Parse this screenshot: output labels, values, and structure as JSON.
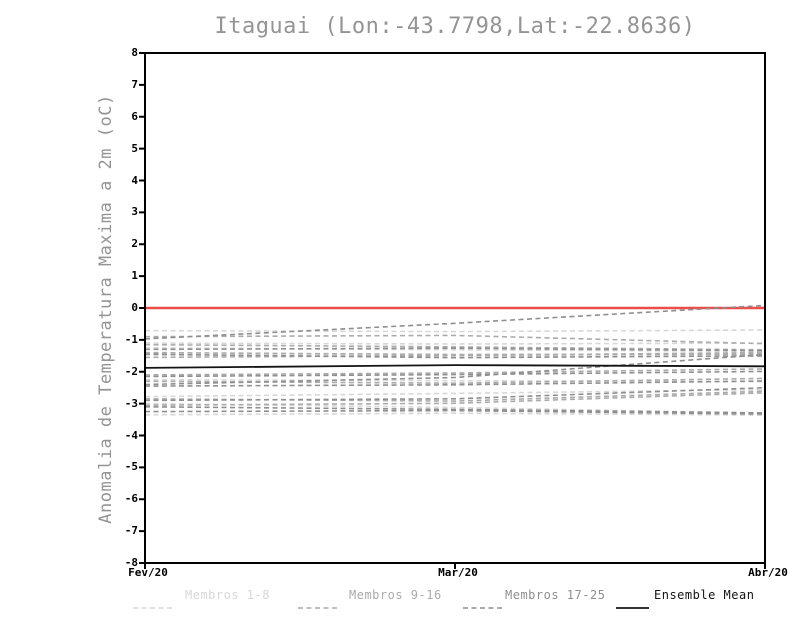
{
  "page": {
    "background": "#ffffff"
  },
  "chart_data": {
    "type": "line",
    "title": "Itaguai (Lon:-43.7798,Lat:-22.8636)",
    "ylabel": "Anomalia de Temperatura Maxima a 2m (oC)",
    "xlabel": "",
    "ylim": [
      -8,
      8
    ],
    "ytick_step": 1,
    "x": [
      0,
      0.5,
      1
    ],
    "x_ticklabels": [
      "Fev/20",
      "Mar/20",
      "Abr/20"
    ],
    "grid": false,
    "legend_position": "bottom",
    "axis_color": "#000000",
    "title_color": "#949494",
    "zero_line": {
      "value": 0,
      "color": "#ee4b4b"
    },
    "groups": [
      {
        "name": "Membros 1-8",
        "color": "#d7d7d7",
        "style": "dashed"
      },
      {
        "name": "Membros 9-16",
        "color": "#ababab",
        "style": "dashed"
      },
      {
        "name": "Membros 17-25",
        "color": "#8f8f8f",
        "style": "dashed"
      },
      {
        "name": "Ensemble Mean",
        "color": "#141414",
        "style": "solid"
      }
    ],
    "series": [
      {
        "group": 0,
        "values": [
          -0.71,
          -0.74,
          -0.69
        ]
      },
      {
        "group": 0,
        "values": [
          -1.1,
          -1.13,
          -1.1
        ]
      },
      {
        "group": 0,
        "values": [
          -1.25,
          -1.31,
          -1.36
        ]
      },
      {
        "group": 0,
        "values": [
          -1.47,
          -1.5,
          -1.52
        ]
      },
      {
        "group": 0,
        "values": [
          -2.25,
          -2.28,
          -2.31
        ]
      },
      {
        "group": 0,
        "values": [
          -2.78,
          -2.68,
          -2.56
        ]
      },
      {
        "group": 0,
        "values": [
          -3.0,
          -3.12,
          -3.3
        ]
      },
      {
        "group": 0,
        "values": [
          -3.35,
          -3.3,
          -3.36
        ]
      },
      {
        "group": 1,
        "values": [
          -0.9,
          -0.86,
          -1.12
        ]
      },
      {
        "group": 1,
        "values": [
          -1.15,
          -1.22,
          -1.31
        ]
      },
      {
        "group": 1,
        "values": [
          -1.4,
          -1.46,
          -1.45
        ]
      },
      {
        "group": 1,
        "values": [
          -1.55,
          -1.49,
          -1.4
        ]
      },
      {
        "group": 1,
        "values": [
          -2.1,
          -2.04,
          -1.91
        ]
      },
      {
        "group": 1,
        "values": [
          -2.3,
          -2.36,
          -2.21
        ]
      },
      {
        "group": 1,
        "values": [
          -2.85,
          -2.92,
          -2.61
        ]
      },
      {
        "group": 1,
        "values": [
          -3.05,
          -2.99,
          -2.66
        ]
      },
      {
        "group": 2,
        "values": [
          -0.97,
          -0.48,
          0.08
        ]
      },
      {
        "group": 2,
        "values": [
          -1.3,
          -1.26,
          -1.34
        ]
      },
      {
        "group": 2,
        "values": [
          -1.45,
          -1.56,
          -1.5
        ]
      },
      {
        "group": 2,
        "values": [
          -2.15,
          -2.09,
          -1.99
        ]
      },
      {
        "group": 2,
        "values": [
          -2.4,
          -2.18,
          -1.46
        ]
      },
      {
        "group": 2,
        "values": [
          -2.45,
          -2.41,
          -2.29
        ]
      },
      {
        "group": 2,
        "values": [
          -2.9,
          -2.85,
          -2.5
        ]
      },
      {
        "group": 2,
        "values": [
          -3.1,
          -3.18,
          -3.29
        ]
      },
      {
        "group": 2,
        "values": [
          -3.25,
          -3.22,
          -3.33
        ]
      },
      {
        "group": 3,
        "name": "Ensemble Mean",
        "values": [
          -1.88,
          -1.79,
          -1.83
        ]
      }
    ]
  }
}
